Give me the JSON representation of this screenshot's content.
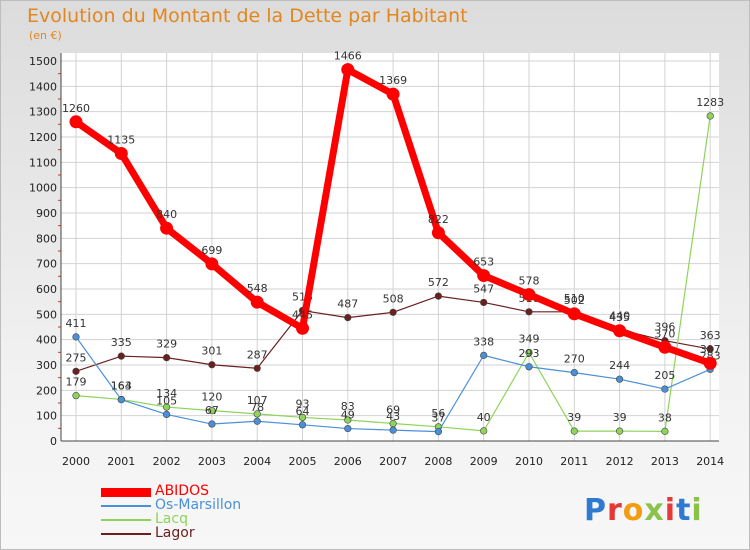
{
  "chart_data": {
    "type": "line",
    "title": "Evolution du Montant de la Dette par Habitant",
    "subtitle": "(en €)",
    "x": [
      "2000",
      "2001",
      "2002",
      "2003",
      "2004",
      "2005",
      "2006",
      "2007",
      "2008",
      "2009",
      "2010",
      "2011",
      "2012",
      "2013",
      "2014"
    ],
    "ylim": [
      0,
      1500
    ],
    "yticks": [
      0,
      100,
      200,
      300,
      400,
      500,
      600,
      700,
      800,
      900,
      1000,
      1100,
      1200,
      1300,
      1400,
      1500
    ],
    "grid": true,
    "legend": "bottom-left",
    "series": [
      {
        "name": "ABIDOS",
        "color": "#ff0000",
        "values": [
          1260,
          1135,
          840,
          699,
          548,
          445,
          1466,
          1369,
          822,
          653,
          578,
          502,
          435,
          370,
          307
        ]
      },
      {
        "name": "Os-Marsillon",
        "color": "#4a90d9",
        "values": [
          411,
          163,
          105,
          67,
          78,
          64,
          49,
          43,
          37,
          338,
          293,
          270,
          244,
          205,
          283
        ]
      },
      {
        "name": "Lacq",
        "color": "#8ed35a",
        "values": [
          179,
          164,
          134,
          120,
          107,
          93,
          83,
          69,
          56,
          40,
          349,
          39,
          39,
          38,
          1283
        ]
      },
      {
        "name": "Lagor",
        "color": "#6b2020",
        "values": [
          275,
          335,
          329,
          301,
          287,
          515,
          487,
          508,
          572,
          547,
          510,
          510,
          440,
          396,
          363
        ]
      }
    ]
  },
  "branding": {
    "logo": "Proxiti"
  }
}
